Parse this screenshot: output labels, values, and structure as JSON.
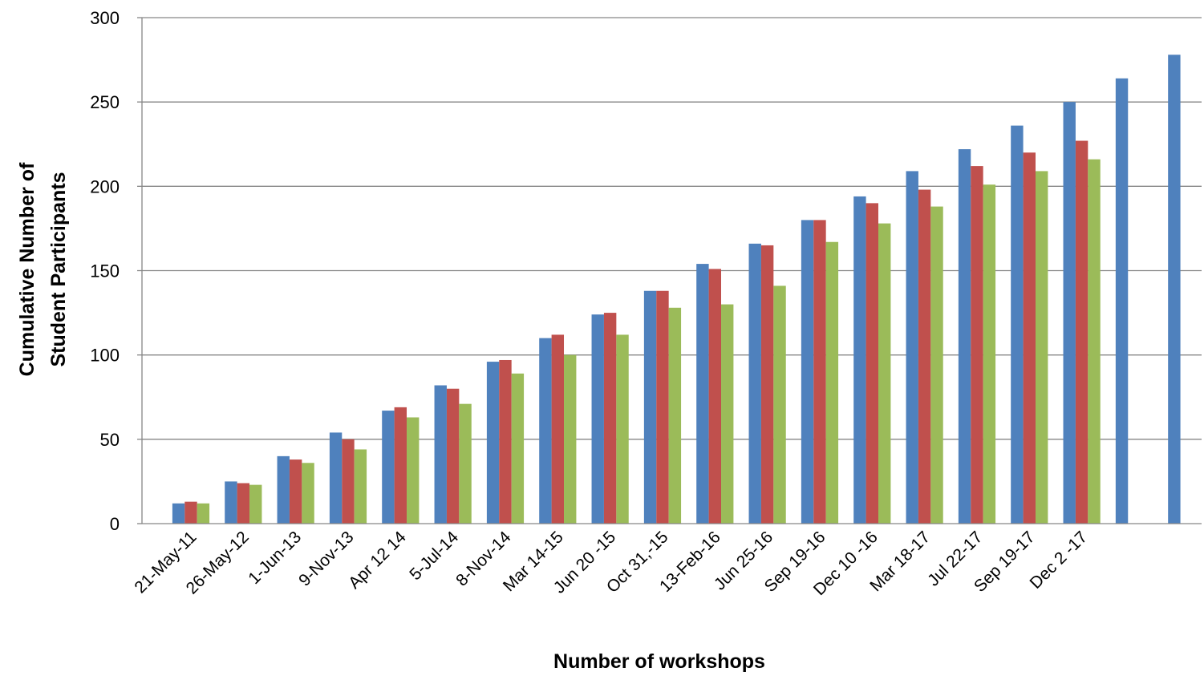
{
  "chart_data": {
    "type": "bar",
    "title": "",
    "xlabel": "Number of workshops",
    "ylabel_lines": [
      "Cumulative Number of",
      "Student Participants"
    ],
    "ylim": [
      0,
      300
    ],
    "yticks": [
      0,
      50,
      100,
      150,
      200,
      250,
      300
    ],
    "grid": true,
    "categories": [
      "21-May-11",
      "26-May-12",
      "1-Jun-13",
      "9-Nov-13",
      "Apr  12  14",
      "5-Jul-14",
      "8-Nov-14",
      "Mar  14-15",
      "Jun  20 -15",
      "Oct 31,-15",
      "13-Feb-16",
      "Jun  25-16",
      "Sep 19-16",
      "Dec 10 -16",
      "Mar 18-17",
      "Jul 22-17",
      "Sep 19-17",
      "Dec 2 -17",
      "",
      ""
    ],
    "series": [
      {
        "color": "#4F81BD",
        "values": [
          12,
          25,
          40,
          54,
          67,
          82,
          96,
          110,
          124,
          138,
          154,
          166,
          180,
          194,
          209,
          222,
          236,
          250,
          264,
          278
        ]
      },
      {
        "color": "#C0504D",
        "values": [
          13,
          24,
          38,
          50,
          69,
          80,
          97,
          112,
          125,
          138,
          151,
          165,
          180,
          190,
          198,
          212,
          220,
          227,
          null,
          null
        ]
      },
      {
        "color": "#9BBB59",
        "values": [
          12,
          23,
          36,
          44,
          63,
          71,
          89,
          100,
          112,
          128,
          130,
          141,
          167,
          178,
          188,
          201,
          209,
          216,
          null,
          null
        ]
      }
    ]
  }
}
